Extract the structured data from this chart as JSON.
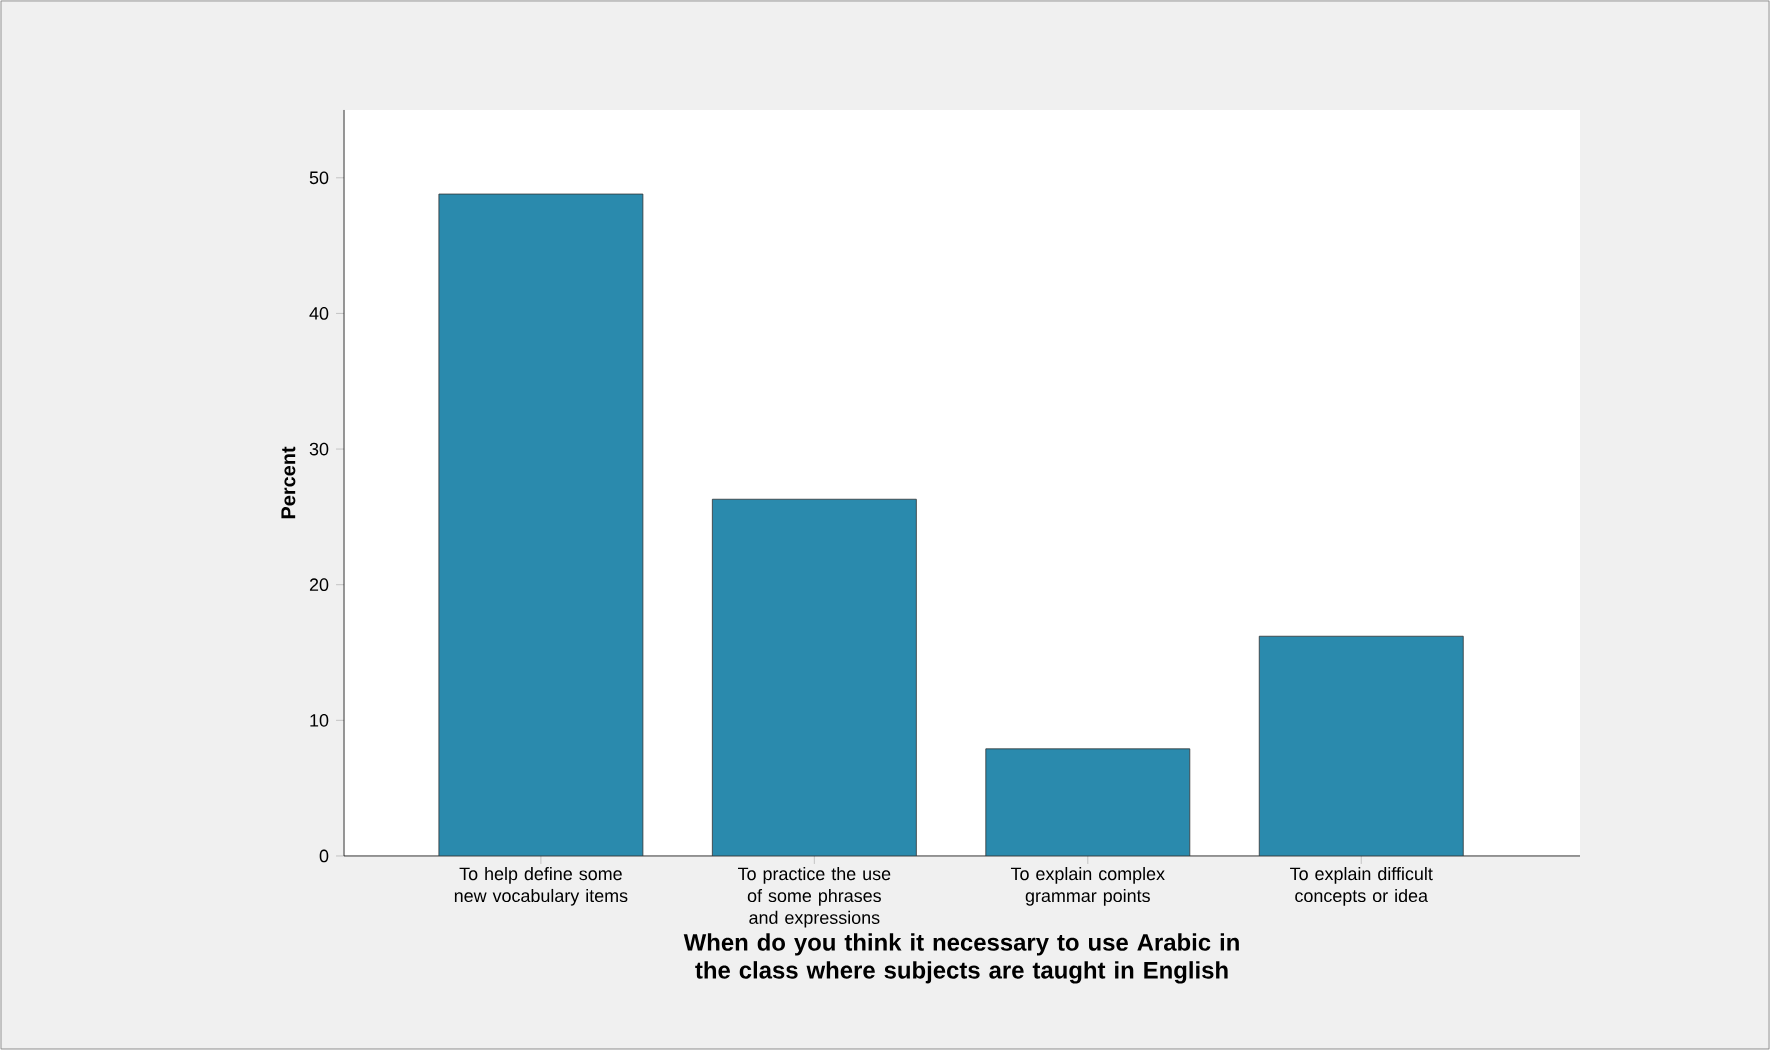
{
  "chart_data": {
    "type": "bar",
    "categories": [
      "To help define some new vocabulary items",
      "To practice the use of some phrases and expressions",
      "To explain complex grammar points",
      "To explain difficult concepts or idea"
    ],
    "values": [
      48.8,
      26.3,
      7.9,
      16.2
    ],
    "color": "#2a8aad",
    "xlabel": "When do you think it necessary to use Arabic in the class where subjects are taught in English",
    "ylabel": "Percent",
    "ylim": [
      0,
      55
    ],
    "yticks": [
      0,
      10,
      20,
      30,
      40,
      50
    ],
    "grid": false
  }
}
